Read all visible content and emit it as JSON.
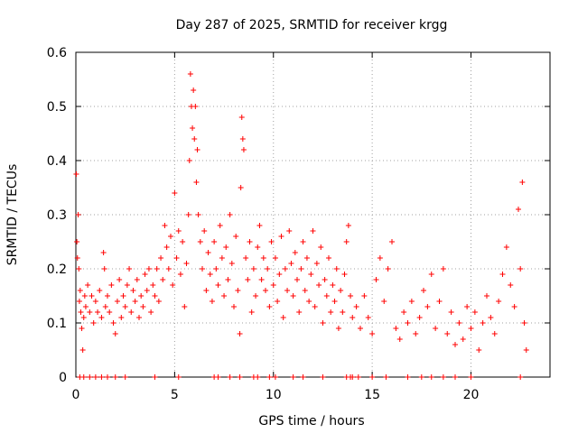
{
  "chart_data": {
    "type": "scatter",
    "title": "Day 287 of 2025, SRMTID for receiver krgg",
    "xlabel": "GPS time / hours",
    "ylabel": "SRMTID / TECUs",
    "xlim": [
      0,
      24
    ],
    "ylim": [
      0,
      0.6
    ],
    "xticks": [
      "0",
      "5",
      "10",
      "15",
      "20"
    ],
    "yticks": [
      "0",
      "0.1",
      "0.2",
      "0.3",
      "0.4",
      "0.5",
      "0.6"
    ],
    "grid": true,
    "marker": "+",
    "series": [
      {
        "name": "SRMTID",
        "color": "#ff0000",
        "points": [
          [
            0.02,
            0.375
          ],
          [
            0.05,
            0.25
          ],
          [
            0.08,
            0.22
          ],
          [
            0.12,
            0.3
          ],
          [
            0.15,
            0.2
          ],
          [
            0.18,
            0.14
          ],
          [
            0.22,
            0.16
          ],
          [
            0.25,
            0.12
          ],
          [
            0.3,
            0.09
          ],
          [
            0.35,
            0.05
          ],
          [
            0.4,
            0.11
          ],
          [
            0.45,
            0.15
          ],
          [
            0.5,
            0.13
          ],
          [
            0.6,
            0.17
          ],
          [
            0.7,
            0.12
          ],
          [
            0.8,
            0.15
          ],
          [
            0.9,
            0.1
          ],
          [
            1.0,
            0.14
          ],
          [
            1.1,
            0.12
          ],
          [
            1.2,
            0.16
          ],
          [
            1.3,
            0.11
          ],
          [
            1.4,
            0.23
          ],
          [
            1.45,
            0.2
          ],
          [
            1.5,
            0.13
          ],
          [
            1.6,
            0.15
          ],
          [
            1.7,
            0.12
          ],
          [
            1.8,
            0.17
          ],
          [
            1.9,
            0.1
          ],
          [
            2.0,
            0.08
          ],
          [
            2.1,
            0.14
          ],
          [
            2.2,
            0.18
          ],
          [
            2.3,
            0.11
          ],
          [
            2.4,
            0.15
          ],
          [
            2.5,
            0.13
          ],
          [
            2.6,
            0.17
          ],
          [
            2.7,
            0.2
          ],
          [
            2.8,
            0.12
          ],
          [
            2.9,
            0.16
          ],
          [
            3.0,
            0.14
          ],
          [
            3.1,
            0.18
          ],
          [
            3.2,
            0.11
          ],
          [
            3.3,
            0.15
          ],
          [
            3.4,
            0.13
          ],
          [
            3.5,
            0.19
          ],
          [
            3.6,
            0.16
          ],
          [
            3.7,
            0.2
          ],
          [
            3.8,
            0.12
          ],
          [
            3.9,
            0.17
          ],
          [
            4.0,
            0.15
          ],
          [
            4.1,
            0.2
          ],
          [
            4.2,
            0.14
          ],
          [
            4.3,
            0.22
          ],
          [
            4.4,
            0.18
          ],
          [
            4.5,
            0.28
          ],
          [
            4.6,
            0.24
          ],
          [
            4.7,
            0.2
          ],
          [
            4.8,
            0.26
          ],
          [
            4.9,
            0.17
          ],
          [
            5.0,
            0.34
          ],
          [
            5.1,
            0.22
          ],
          [
            5.2,
            0.27
          ],
          [
            5.3,
            0.19
          ],
          [
            5.4,
            0.25
          ],
          [
            5.5,
            0.13
          ],
          [
            5.6,
            0.21
          ],
          [
            5.7,
            0.3
          ],
          [
            5.75,
            0.4
          ],
          [
            5.8,
            0.56
          ],
          [
            5.85,
            0.5
          ],
          [
            5.9,
            0.46
          ],
          [
            5.95,
            0.53
          ],
          [
            6.0,
            0.44
          ],
          [
            6.05,
            0.5
          ],
          [
            6.1,
            0.36
          ],
          [
            6.15,
            0.42
          ],
          [
            6.2,
            0.3
          ],
          [
            6.3,
            0.25
          ],
          [
            6.4,
            0.2
          ],
          [
            6.5,
            0.27
          ],
          [
            6.6,
            0.16
          ],
          [
            6.7,
            0.23
          ],
          [
            6.8,
            0.19
          ],
          [
            6.9,
            0.14
          ],
          [
            7.0,
            0.25
          ],
          [
            7.1,
            0.2
          ],
          [
            7.2,
            0.17
          ],
          [
            7.3,
            0.28
          ],
          [
            7.4,
            0.22
          ],
          [
            7.5,
            0.15
          ],
          [
            7.6,
            0.24
          ],
          [
            7.7,
            0.18
          ],
          [
            7.8,
            0.3
          ],
          [
            7.9,
            0.21
          ],
          [
            8.0,
            0.13
          ],
          [
            8.1,
            0.26
          ],
          [
            8.2,
            0.16
          ],
          [
            8.3,
            0.08
          ],
          [
            8.35,
            0.35
          ],
          [
            8.4,
            0.48
          ],
          [
            8.45,
            0.44
          ],
          [
            8.5,
            0.42
          ],
          [
            8.6,
            0.22
          ],
          [
            8.7,
            0.18
          ],
          [
            8.8,
            0.25
          ],
          [
            8.9,
            0.12
          ],
          [
            9.0,
            0.2
          ],
          [
            9.1,
            0.15
          ],
          [
            9.2,
            0.24
          ],
          [
            9.3,
            0.28
          ],
          [
            9.4,
            0.18
          ],
          [
            9.5,
            0.22
          ],
          [
            9.6,
            0.16
          ],
          [
            9.7,
            0.2
          ],
          [
            9.8,
            0.13
          ],
          [
            9.9,
            0.25
          ],
          [
            10.0,
            0.17
          ],
          [
            10.1,
            0.22
          ],
          [
            10.2,
            0.14
          ],
          [
            10.3,
            0.19
          ],
          [
            10.4,
            0.26
          ],
          [
            10.5,
            0.11
          ],
          [
            10.6,
            0.2
          ],
          [
            10.7,
            0.16
          ],
          [
            10.8,
            0.27
          ],
          [
            10.9,
            0.21
          ],
          [
            11.0,
            0.15
          ],
          [
            11.1,
            0.23
          ],
          [
            11.2,
            0.18
          ],
          [
            11.3,
            0.12
          ],
          [
            11.4,
            0.2
          ],
          [
            11.5,
            0.25
          ],
          [
            11.6,
            0.16
          ],
          [
            11.7,
            0.22
          ],
          [
            11.8,
            0.14
          ],
          [
            11.9,
            0.19
          ],
          [
            12.0,
            0.27
          ],
          [
            12.1,
            0.13
          ],
          [
            12.2,
            0.21
          ],
          [
            12.3,
            0.17
          ],
          [
            12.4,
            0.24
          ],
          [
            12.5,
            0.1
          ],
          [
            12.6,
            0.18
          ],
          [
            12.7,
            0.15
          ],
          [
            12.8,
            0.22
          ],
          [
            12.9,
            0.12
          ],
          [
            13.0,
            0.17
          ],
          [
            13.1,
            0.14
          ],
          [
            13.2,
            0.2
          ],
          [
            13.3,
            0.09
          ],
          [
            13.4,
            0.16
          ],
          [
            13.5,
            0.12
          ],
          [
            13.6,
            0.19
          ],
          [
            13.7,
            0.25
          ],
          [
            13.8,
            0.28
          ],
          [
            13.9,
            0.15
          ],
          [
            14.0,
            0.11
          ],
          [
            14.2,
            0.13
          ],
          [
            14.4,
            0.09
          ],
          [
            14.6,
            0.15
          ],
          [
            14.8,
            0.11
          ],
          [
            15.0,
            0.08
          ],
          [
            15.2,
            0.18
          ],
          [
            15.4,
            0.22
          ],
          [
            15.6,
            0.14
          ],
          [
            15.8,
            0.2
          ],
          [
            16.0,
            0.25
          ],
          [
            16.2,
            0.09
          ],
          [
            16.4,
            0.07
          ],
          [
            16.6,
            0.12
          ],
          [
            16.8,
            0.1
          ],
          [
            17.0,
            0.14
          ],
          [
            17.2,
            0.08
          ],
          [
            17.4,
            0.11
          ],
          [
            17.6,
            0.16
          ],
          [
            17.8,
            0.13
          ],
          [
            18.0,
            0.19
          ],
          [
            18.2,
            0.09
          ],
          [
            18.4,
            0.14
          ],
          [
            18.6,
            0.2
          ],
          [
            18.8,
            0.08
          ],
          [
            19.0,
            0.12
          ],
          [
            19.2,
            0.06
          ],
          [
            19.4,
            0.1
          ],
          [
            19.6,
            0.07
          ],
          [
            19.8,
            0.13
          ],
          [
            20.0,
            0.09
          ],
          [
            20.2,
            0.12
          ],
          [
            20.4,
            0.05
          ],
          [
            20.6,
            0.1
          ],
          [
            20.8,
            0.15
          ],
          [
            21.0,
            0.11
          ],
          [
            21.2,
            0.08
          ],
          [
            21.4,
            0.14
          ],
          [
            21.6,
            0.19
          ],
          [
            21.8,
            0.24
          ],
          [
            22.0,
            0.17
          ],
          [
            22.2,
            0.13
          ],
          [
            22.4,
            0.31
          ],
          [
            22.5,
            0.2
          ],
          [
            22.6,
            0.36
          ],
          [
            22.7,
            0.1
          ],
          [
            22.8,
            0.05
          ]
        ]
      }
    ],
    "zero_markers_x": [
      0.2,
      0.4,
      0.7,
      1.0,
      1.3,
      1.6,
      2.0,
      2.5,
      4.0,
      5.2,
      7.0,
      7.2,
      7.8,
      8.3,
      9.0,
      9.2,
      9.8,
      10.1,
      11.0,
      11.5,
      12.5,
      13.7,
      13.9,
      14.0,
      14.3,
      15.0,
      15.7,
      16.8,
      17.5,
      18.0,
      18.6,
      19.2,
      20.0,
      22.5
    ]
  }
}
